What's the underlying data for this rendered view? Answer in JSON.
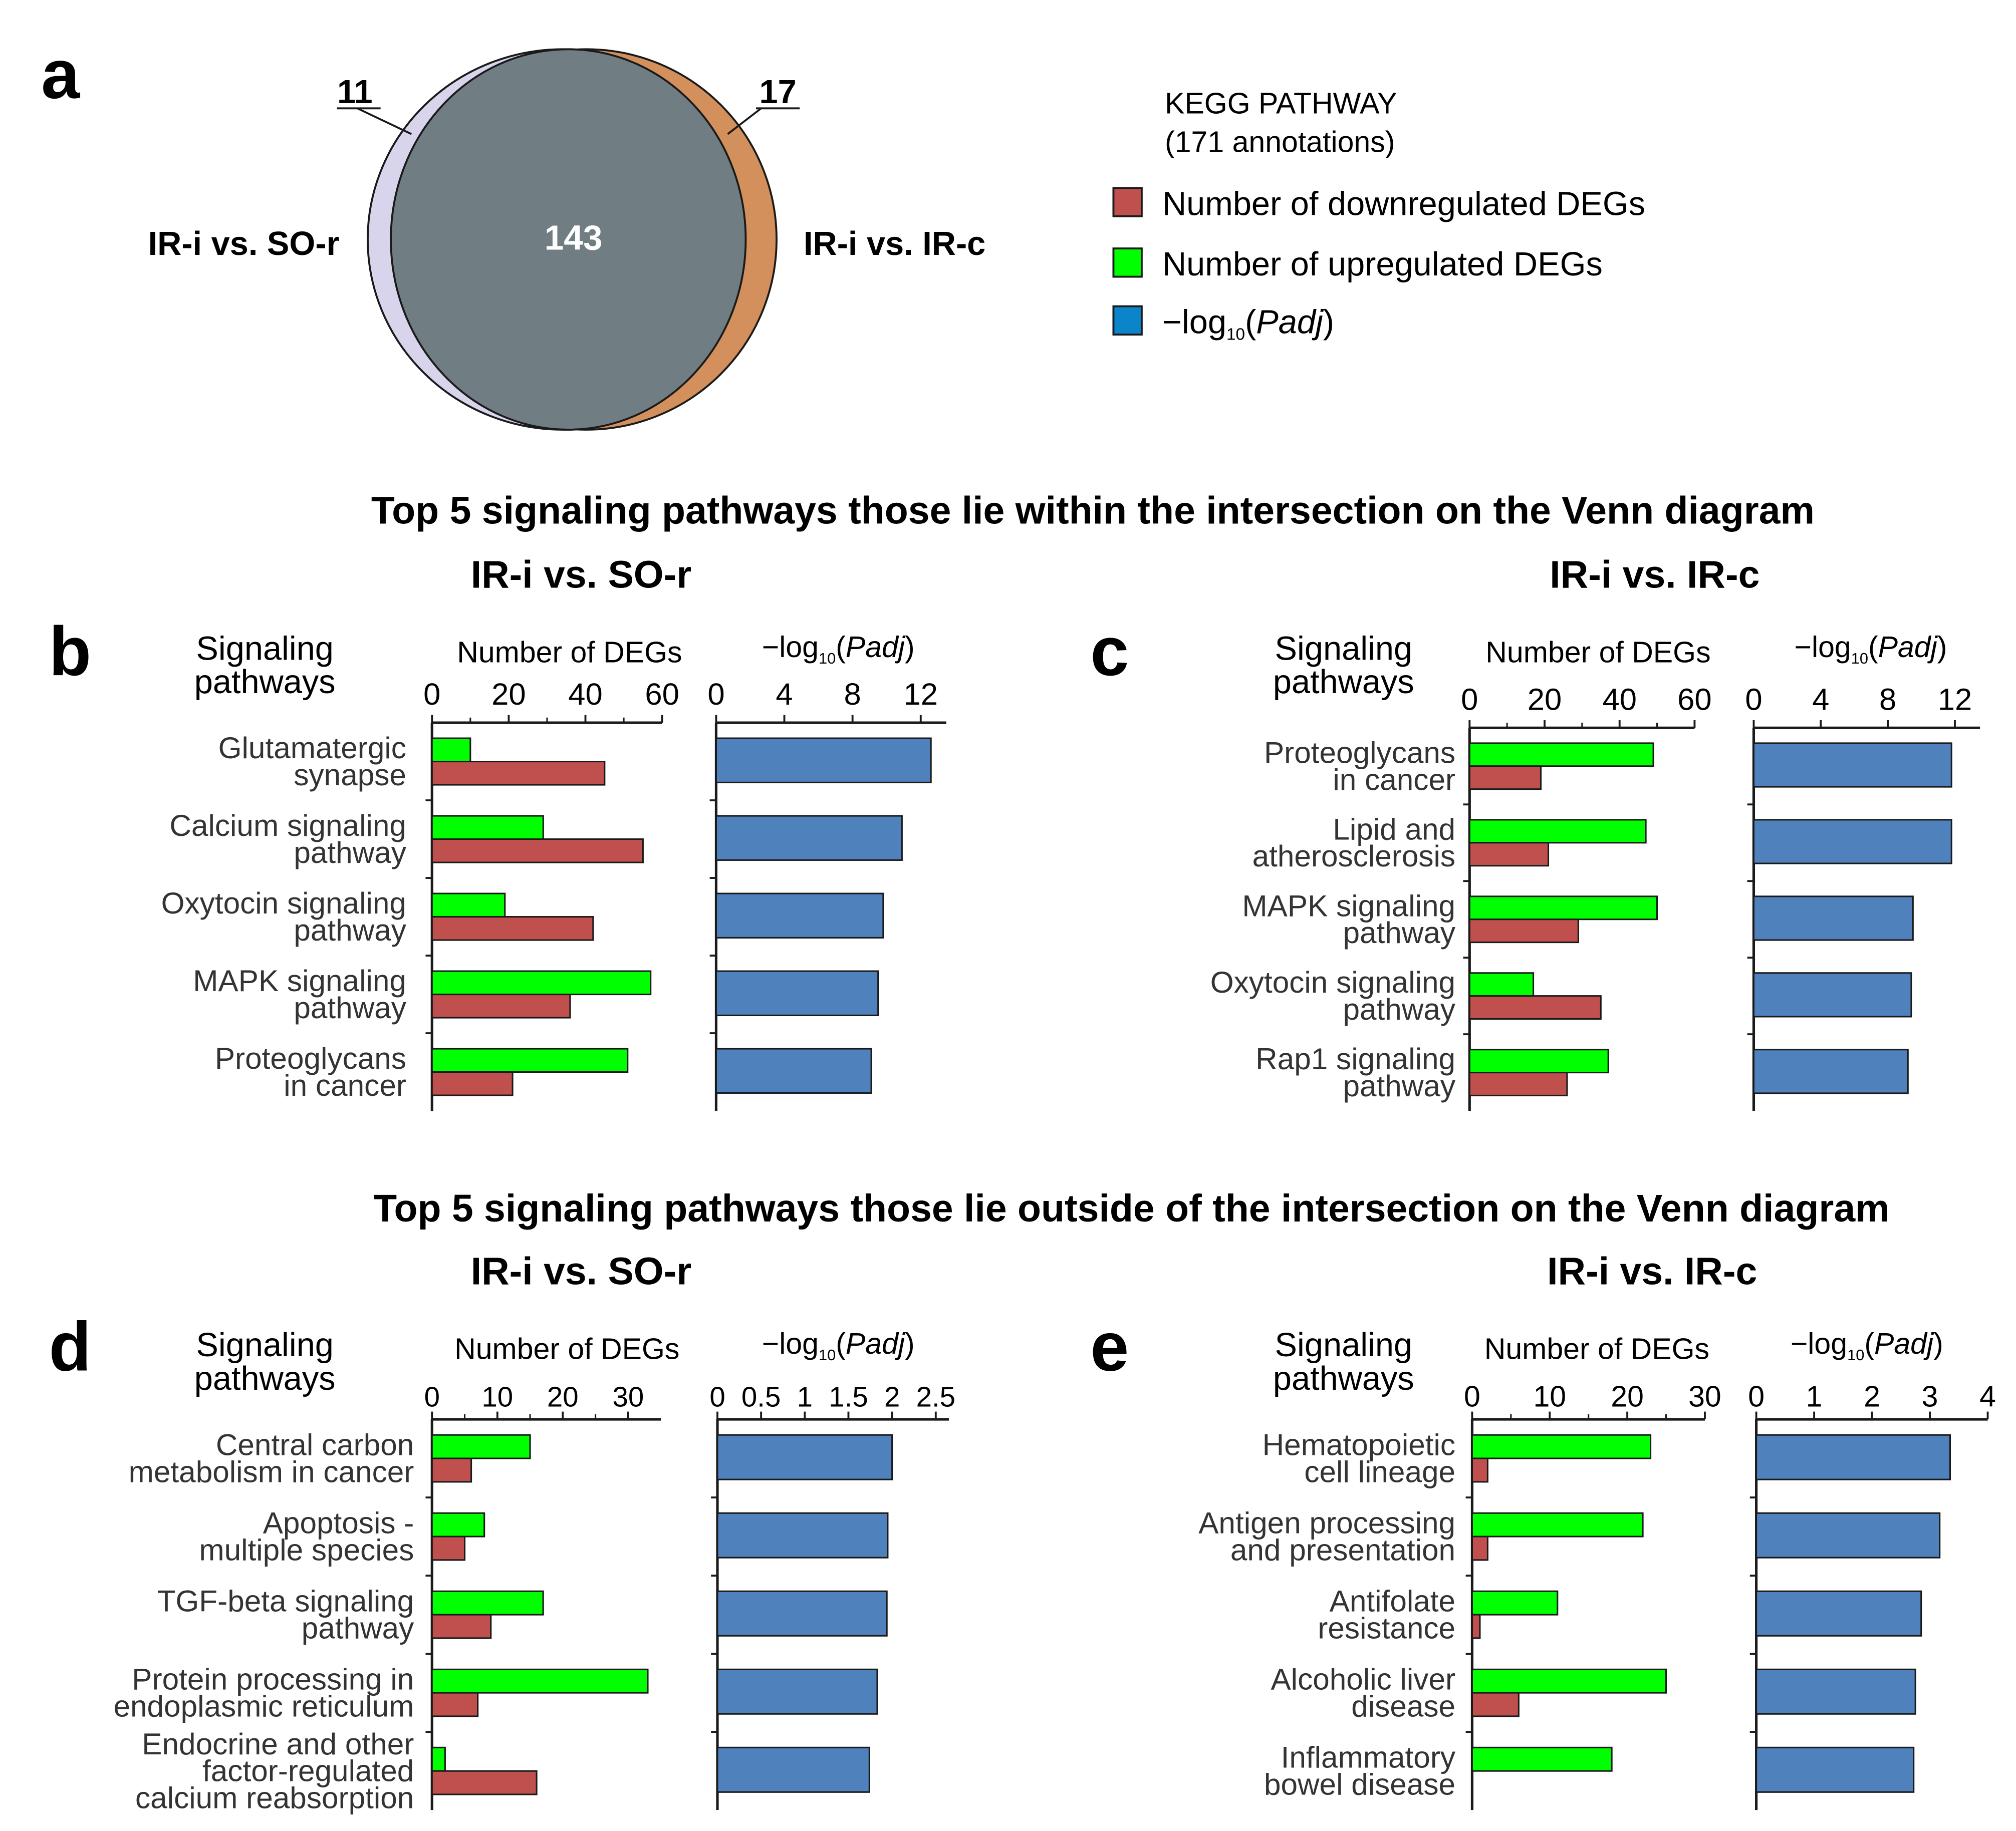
{
  "panel_letters": {
    "a": "a",
    "b": "b",
    "c": "c",
    "d": "d",
    "e": "e"
  },
  "venn": {
    "left_only": "11",
    "right_only": "17",
    "intersection": "143",
    "left_label": "IR-i vs. SO-r",
    "right_label": "IR-i vs. IR-c",
    "colors": {
      "left": "#d8d4ec",
      "right": "#d4905c",
      "overlap": "#707d82",
      "label": "#ffffff"
    }
  },
  "legend": {
    "title_line1": "KEGG PATHWAY",
    "title_line2": "(171 annotations)",
    "items": [
      {
        "label": "Number of downregulated DEGs",
        "color": "#c0504d"
      },
      {
        "label": "Number of upregulated DEGs",
        "color": "#00ff00"
      },
      {
        "label_prefix": "−log",
        "label_sub": "10",
        "label_paren_open": "(",
        "label_italic": "Padj",
        "label_paren_close": ")",
        "color": "#0b84c9"
      }
    ]
  },
  "section_titles": {
    "top": "Top 5 signaling pathways those lie within the intersection on the Venn diagram",
    "bottom": "Top 5 signaling pathways those lie outside of the intersection on the Venn diagram"
  },
  "comparison_titles": {
    "left": "IR-i vs. SO-r",
    "right": "IR-i vs. IR-c"
  },
  "headers": {
    "pathways_line1": "Signaling",
    "pathways_line2": "pathways",
    "degs": "Number of DEGs",
    "padj_prefix": "−log",
    "padj_sub": "10",
    "padj_open": "(",
    "padj_italic": "Padj",
    "padj_close": ")"
  },
  "colors": {
    "down": "#c0504d",
    "up": "#00ff00",
    "padj": "#4f81bd",
    "bar_stroke": "#1a1a1a"
  },
  "chart_data": [
    {
      "panel": "b",
      "type": "bar",
      "orientation": "horizontal",
      "comparison": "IR-i vs. SO-r",
      "categories": [
        [
          "Glutamatergic",
          "synapse"
        ],
        [
          "Calcium signaling",
          "pathway"
        ],
        [
          "Oxytocin signaling",
          "pathway"
        ],
        [
          "MAPK signaling",
          "pathway"
        ],
        [
          "Proteoglycans",
          "in cancer"
        ]
      ],
      "degs": {
        "xlim": [
          0,
          60
        ],
        "ticks": [
          "0",
          "20",
          "40",
          "60"
        ],
        "up": [
          10,
          29,
          19,
          57,
          51
        ],
        "down": [
          45,
          55,
          42,
          36,
          21
        ]
      },
      "padj": {
        "xlim": [
          0,
          13.5
        ],
        "ticks": [
          "0",
          "4",
          "8",
          "12"
        ],
        "values": [
          12.6,
          10.9,
          9.8,
          9.5,
          9.1
        ]
      }
    },
    {
      "panel": "c",
      "type": "bar",
      "orientation": "horizontal",
      "comparison": "IR-i vs. IR-c",
      "categories": [
        [
          "Proteoglycans",
          "in cancer"
        ],
        [
          "Lipid and",
          "atherosclerosis"
        ],
        [
          "MAPK signaling",
          "pathway"
        ],
        [
          "Oxytocin signaling",
          "pathway"
        ],
        [
          "Rap1 signaling",
          "pathway"
        ]
      ],
      "degs": {
        "xlim": [
          0,
          60
        ],
        "ticks": [
          "0",
          "20",
          "40",
          "60"
        ],
        "up": [
          49,
          47,
          50,
          17,
          37
        ],
        "down": [
          19,
          21,
          29,
          35,
          26
        ]
      },
      "padj": {
        "xlim": [
          0,
          13.5
        ],
        "ticks": [
          "0",
          "4",
          "8",
          "12"
        ],
        "values": [
          11.8,
          11.8,
          9.5,
          9.4,
          9.2
        ]
      }
    },
    {
      "panel": "d",
      "type": "bar",
      "orientation": "horizontal",
      "comparison": "IR-i vs. SO-r",
      "categories": [
        [
          "Central carbon",
          "metabolism in cancer"
        ],
        [
          "Apoptosis -",
          "multiple species"
        ],
        [
          "TGF-beta signaling",
          "pathway"
        ],
        [
          "Protein processing in",
          "endoplasmic reticulum"
        ],
        [
          "Endocrine and other",
          "factor-regulated",
          "calcium reabsorption"
        ]
      ],
      "degs": {
        "xlim": [
          0,
          35
        ],
        "ticks": [
          "0",
          "10",
          "20",
          "30"
        ],
        "up": [
          15,
          8,
          17,
          33,
          2
        ],
        "down": [
          6,
          5,
          9,
          7,
          16
        ]
      },
      "padj": {
        "xlim": [
          0,
          2.65
        ],
        "ticks": [
          "0",
          "0.5",
          "1",
          "1.5",
          "2",
          "2.5"
        ],
        "values": [
          2.0,
          1.95,
          1.94,
          1.83,
          1.74
        ]
      }
    },
    {
      "panel": "e",
      "type": "bar",
      "orientation": "horizontal",
      "comparison": "IR-i vs. IR-c",
      "categories": [
        [
          "Hematopoietic",
          "cell lineage"
        ],
        [
          "Antigen processing",
          "and presentation"
        ],
        [
          "Antifolate",
          "resistance"
        ],
        [
          "Alcoholic liver",
          "disease"
        ],
        [
          "Inflammatory",
          "bowel disease"
        ]
      ],
      "degs": {
        "xlim": [
          0,
          30
        ],
        "ticks": [
          "0",
          "10",
          "20",
          "30"
        ],
        "up": [
          23,
          22,
          11,
          25,
          18
        ],
        "down": [
          2,
          2,
          1,
          6,
          0
        ]
      },
      "padj": {
        "xlim": [
          0,
          4
        ],
        "ticks": [
          "0",
          "1",
          "2",
          "3",
          "4"
        ],
        "values": [
          3.35,
          3.17,
          2.85,
          2.75,
          2.72
        ]
      }
    }
  ]
}
